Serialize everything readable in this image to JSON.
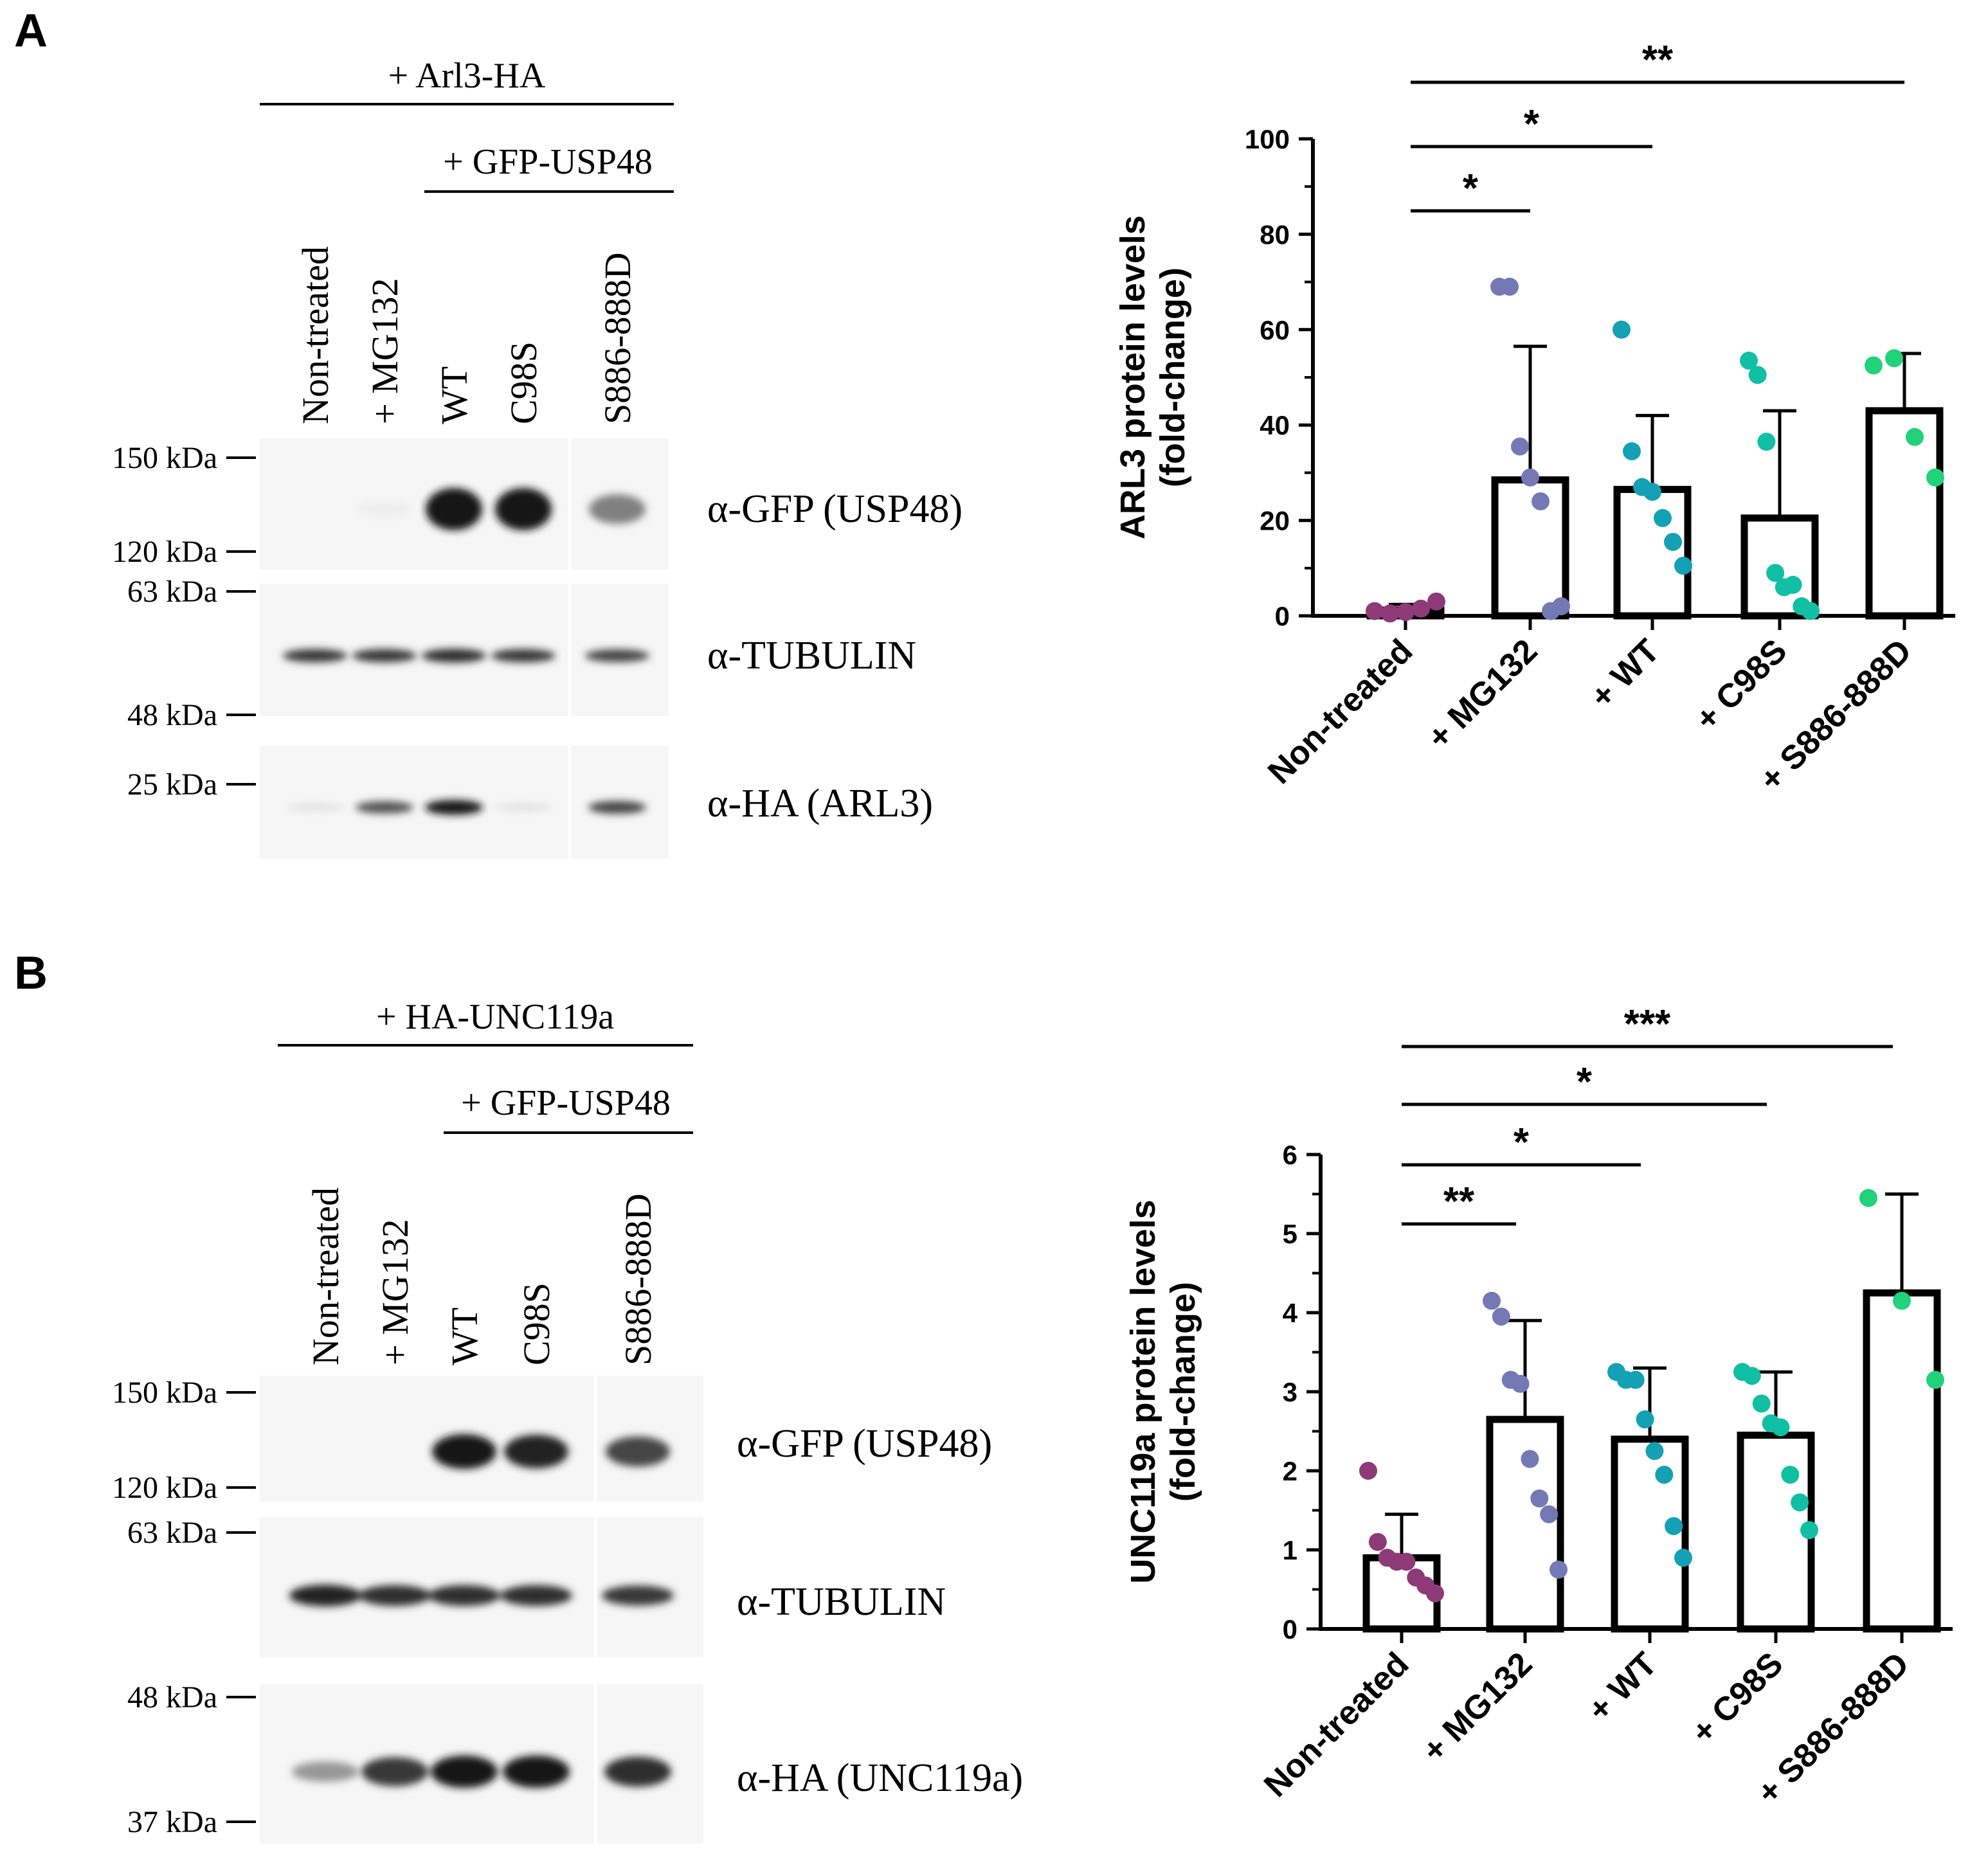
{
  "panels": [
    {
      "label": "A",
      "blot": {
        "group_label": "+ Arl3-HA",
        "subgroup_label": "+ GFP-USP48",
        "lanes": [
          "Non-treated",
          "+ MG132",
          "WT",
          "C98S",
          "S886-888D"
        ],
        "rows": [
          {
            "antibody": "α-GFP (USP48)",
            "intensities": [
              0,
              0.03,
              0.95,
              0.95,
              0.5
            ],
            "markers": [
              "150 kDa",
              "120 kDa"
            ]
          },
          {
            "antibody": "α-TUBULIN",
            "intensities": [
              0.8,
              0.8,
              0.85,
              0.8,
              0.75
            ],
            "markers": [
              "63 kDa",
              "48 kDa"
            ]
          },
          {
            "antibody": "α-HA (ARL3)",
            "intensities": [
              0.1,
              0.7,
              0.95,
              0.1,
              0.75
            ],
            "markers": [
              "25 kDa"
            ]
          }
        ]
      }
    },
    {
      "label": "B",
      "blot": {
        "group_label": "+ HA-UNC119a",
        "subgroup_label": "+ GFP-USP48",
        "lanes": [
          "Non-treated",
          "+ MG132",
          "WT",
          "C98S",
          "S886-888D"
        ],
        "rows": [
          {
            "antibody": "α-GFP (USP48)",
            "intensities": [
              0,
              0,
              0.95,
              0.9,
              0.75
            ],
            "markers": [
              "150 kDa",
              "120 kDa"
            ]
          },
          {
            "antibody": "α-TUBULIN",
            "intensities": [
              0.9,
              0.85,
              0.85,
              0.85,
              0.8
            ],
            "markers": [
              "63 kDa"
            ]
          },
          {
            "antibody": "α-HA (UNC119a)",
            "intensities": [
              0.4,
              0.8,
              0.95,
              0.95,
              0.85
            ],
            "markers": [
              "48 kDa",
              "37 kDa"
            ]
          }
        ]
      }
    }
  ],
  "colors": {
    "non_treated": "#8e3a78",
    "mg132": "#7479b5",
    "wt": "#14a0b5",
    "c98s": "#10bfa4",
    "s886": "#20d27a",
    "bar_stroke": "#000000"
  },
  "chart_data": [
    {
      "type": "bar",
      "panel": "A",
      "title": "",
      "xlabel": "",
      "ylabel": "ARL3 protein levels",
      "ylabel_sub": "(fold-change)",
      "categories": [
        "Non-treated",
        "+ MG132",
        "+ WT",
        "+ C98S",
        "+ S886-888D"
      ],
      "values": [
        1.2,
        28.5,
        26.5,
        20.5,
        43
      ],
      "errors": [
        1.2,
        28,
        15.5,
        22.5,
        12
      ],
      "points": [
        [
          1,
          0.5,
          0.8,
          1.5,
          3
        ],
        [
          69,
          69,
          35.5,
          29,
          24,
          1,
          2
        ],
        [
          60,
          34.5,
          27,
          26,
          20.5,
          15.5,
          10.5
        ],
        [
          53.5,
          50.5,
          36.5,
          9,
          6,
          6.5,
          2,
          1
        ],
        [
          52.5,
          54,
          37.5,
          29
        ]
      ],
      "ylim": [
        0,
        100
      ],
      "yticks": [
        0,
        20,
        40,
        60,
        80,
        100
      ],
      "grid": false,
      "significance": [
        {
          "from": 0,
          "to": 1,
          "label": "*"
        },
        {
          "from": 0,
          "to": 2,
          "label": "*"
        },
        {
          "from": 0,
          "to": 4,
          "label": "**"
        }
      ]
    },
    {
      "type": "bar",
      "panel": "B",
      "title": "",
      "xlabel": "",
      "ylabel": "UNC119a protein levels",
      "ylabel_sub": "(fold-change)",
      "categories": [
        "Non-treated",
        "+ MG132",
        "+ WT",
        "+ C98S",
        "+ S886-888D"
      ],
      "values": [
        0.9,
        2.65,
        2.4,
        2.45,
        4.25
      ],
      "errors": [
        0.55,
        1.25,
        0.9,
        0.8,
        1.25
      ],
      "points": [
        [
          2.0,
          1.1,
          0.9,
          0.85,
          0.85,
          0.65,
          0.55,
          0.45
        ],
        [
          4.15,
          3.95,
          3.15,
          3.1,
          2.15,
          1.65,
          1.45,
          0.75
        ],
        [
          3.25,
          3.15,
          3.15,
          2.65,
          2.25,
          1.95,
          1.3,
          0.9
        ],
        [
          3.25,
          3.2,
          2.85,
          2.6,
          2.55,
          1.95,
          1.6,
          1.25
        ],
        [
          5.45,
          4.15,
          3.15
        ]
      ],
      "ylim": [
        0,
        6
      ],
      "yticks": [
        0,
        1,
        2,
        3,
        4,
        5,
        6
      ],
      "grid": false,
      "significance": [
        {
          "from": 0,
          "to": 1,
          "label": "**"
        },
        {
          "from": 0,
          "to": 2,
          "label": "*"
        },
        {
          "from": 0,
          "to": 3,
          "label": "*"
        },
        {
          "from": 0,
          "to": 4,
          "label": "***"
        }
      ]
    }
  ]
}
